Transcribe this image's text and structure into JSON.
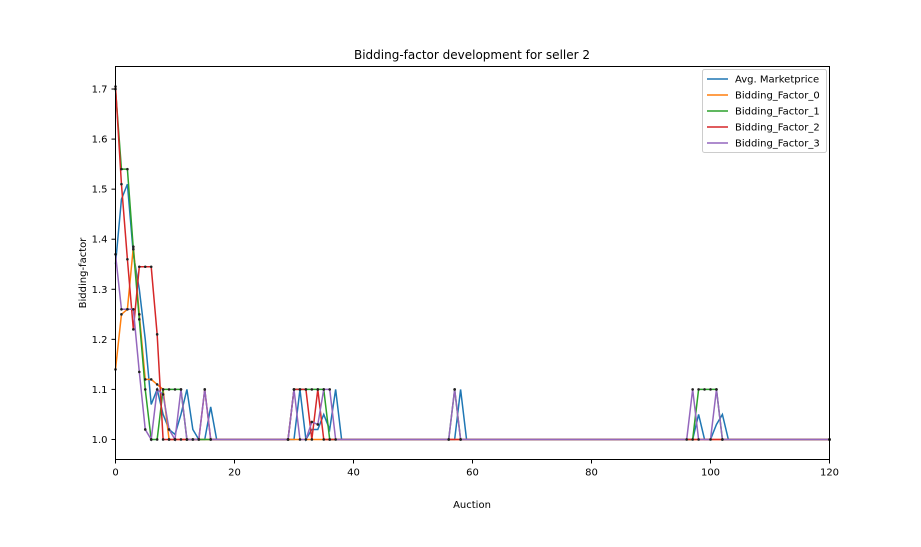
{
  "chart_data": {
    "type": "line",
    "title": "Bidding-factor development for seller 2",
    "xlabel": "Auction",
    "ylabel": "Bidding-factor",
    "xlim": [
      0,
      120
    ],
    "ylim": [
      0.96,
      1.745
    ],
    "xticks": [
      0,
      20,
      40,
      60,
      80,
      100,
      120
    ],
    "yticks": [
      1.0,
      1.1,
      1.2,
      1.3,
      1.4,
      1.5,
      1.6,
      1.7
    ],
    "ytick_labels": [
      "1.0",
      "1.1",
      "1.2",
      "1.3",
      "1.4",
      "1.5",
      "1.6",
      "1.7"
    ],
    "grid": false,
    "legend_position": "top-right",
    "markers": "small black dots at each point of the bidding-factor series",
    "series": [
      {
        "name": "Avg. Marketprice",
        "color": "#1f77b4",
        "points": [
          [
            0,
            1.35
          ],
          [
            1,
            1.48
          ],
          [
            2,
            1.51
          ],
          [
            3,
            1.37
          ],
          [
            4,
            1.3
          ],
          [
            5,
            1.2
          ],
          [
            6,
            1.07
          ],
          [
            7,
            1.1
          ],
          [
            8,
            1.05
          ],
          [
            9,
            1.02
          ],
          [
            10,
            1.01
          ],
          [
            11,
            1.05
          ],
          [
            12,
            1.1
          ],
          [
            13,
            1.02
          ],
          [
            14,
            1.0
          ],
          [
            15,
            1.0
          ],
          [
            16,
            1.065
          ],
          [
            17,
            1.0
          ],
          [
            30,
            1.0
          ],
          [
            31,
            1.1
          ],
          [
            32,
            1.0
          ],
          [
            33,
            1.02
          ],
          [
            34,
            1.02
          ],
          [
            35,
            1.05
          ],
          [
            36,
            1.02
          ],
          [
            37,
            1.1
          ],
          [
            38,
            1.0
          ],
          [
            57,
            1.0
          ],
          [
            58,
            1.1
          ],
          [
            59,
            1.0
          ],
          [
            97,
            1.0
          ],
          [
            98,
            1.05
          ],
          [
            99,
            1.0
          ],
          [
            100,
            1.0
          ],
          [
            101,
            1.03
          ],
          [
            102,
            1.05
          ],
          [
            103,
            1.0
          ],
          [
            120,
            1.0
          ]
        ]
      },
      {
        "name": "Bidding_Factor_0",
        "color": "#ff7f0e",
        "points": [
          [
            0,
            1.14
          ],
          [
            1,
            1.25
          ],
          [
            2,
            1.26
          ],
          [
            3,
            1.385
          ],
          [
            4,
            1.25
          ],
          [
            5,
            1.12
          ],
          [
            6,
            1.12
          ],
          [
            7,
            1.11
          ],
          [
            8,
            1.1
          ],
          [
            9,
            1.0
          ],
          [
            10,
            1.0
          ],
          [
            120,
            1.0
          ]
        ]
      },
      {
        "name": "Bidding_Factor_1",
        "color": "#2ca02c",
        "points": [
          [
            0,
            1.7
          ],
          [
            1,
            1.54
          ],
          [
            2,
            1.54
          ],
          [
            3,
            1.38
          ],
          [
            4,
            1.24
          ],
          [
            5,
            1.1
          ],
          [
            6,
            1.0
          ],
          [
            7,
            1.0
          ],
          [
            8,
            1.1
          ],
          [
            9,
            1.1
          ],
          [
            10,
            1.1
          ],
          [
            11,
            1.1
          ],
          [
            12,
            1.0
          ],
          [
            29,
            1.0
          ],
          [
            30,
            1.1
          ],
          [
            31,
            1.1
          ],
          [
            32,
            1.1
          ],
          [
            33,
            1.1
          ],
          [
            34,
            1.1
          ],
          [
            35,
            1.1
          ],
          [
            36,
            1.0
          ],
          [
            56,
            1.0
          ],
          [
            57,
            1.1
          ],
          [
            58,
            1.0
          ],
          [
            97,
            1.0
          ],
          [
            98,
            1.1
          ],
          [
            99,
            1.1
          ],
          [
            100,
            1.1
          ],
          [
            101,
            1.1
          ],
          [
            102,
            1.0
          ],
          [
            120,
            1.0
          ]
        ]
      },
      {
        "name": "Bidding_Factor_2",
        "color": "#d62728",
        "points": [
          [
            0,
            1.705
          ],
          [
            1,
            1.51
          ],
          [
            2,
            1.36
          ],
          [
            3,
            1.22
          ],
          [
            4,
            1.345
          ],
          [
            5,
            1.345
          ],
          [
            6,
            1.345
          ],
          [
            7,
            1.21
          ],
          [
            8,
            1.0
          ],
          [
            9,
            1.0
          ],
          [
            10,
            1.0
          ],
          [
            11,
            1.0
          ],
          [
            12,
            1.0
          ],
          [
            13,
            1.0
          ],
          [
            14,
            1.0
          ],
          [
            15,
            1.1
          ],
          [
            16,
            1.0
          ],
          [
            29,
            1.0
          ],
          [
            30,
            1.1
          ],
          [
            31,
            1.1
          ],
          [
            32,
            1.1
          ],
          [
            33,
            1.0
          ],
          [
            34,
            1.1
          ],
          [
            35,
            1.0
          ],
          [
            36,
            1.0
          ],
          [
            120,
            1.0
          ]
        ]
      },
      {
        "name": "Bidding_Factor_3",
        "color": "#9467bd",
        "points": [
          [
            0,
            1.37
          ],
          [
            1,
            1.26
          ],
          [
            2,
            1.26
          ],
          [
            3,
            1.26
          ],
          [
            4,
            1.135
          ],
          [
            5,
            1.02
          ],
          [
            6,
            1.0
          ],
          [
            7,
            1.1
          ],
          [
            8,
            1.09
          ],
          [
            9,
            1.02
          ],
          [
            10,
            1.0
          ],
          [
            11,
            1.1
          ],
          [
            12,
            1.0
          ],
          [
            13,
            1.0
          ],
          [
            14,
            1.0
          ],
          [
            15,
            1.1
          ],
          [
            16,
            1.0
          ],
          [
            29,
            1.0
          ],
          [
            30,
            1.1
          ],
          [
            31,
            1.0
          ],
          [
            32,
            1.0
          ],
          [
            33,
            1.035
          ],
          [
            34,
            1.03
          ],
          [
            35,
            1.1
          ],
          [
            36,
            1.1
          ],
          [
            37,
            1.0
          ],
          [
            56,
            1.0
          ],
          [
            57,
            1.1
          ],
          [
            58,
            1.0
          ],
          [
            96,
            1.0
          ],
          [
            97,
            1.1
          ],
          [
            98,
            1.0
          ],
          [
            100,
            1.0
          ],
          [
            101,
            1.1
          ],
          [
            102,
            1.0
          ],
          [
            120,
            1.0
          ]
        ]
      }
    ]
  }
}
